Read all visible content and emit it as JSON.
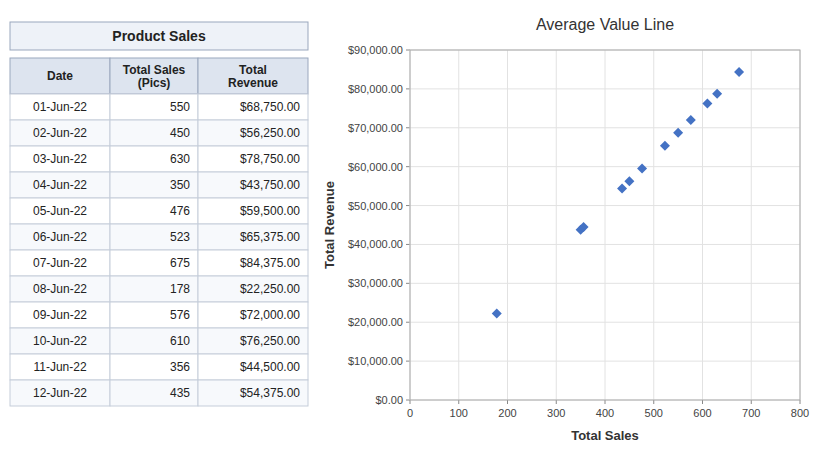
{
  "chart_data": [
    {
      "type": "table",
      "title": "Product Sales",
      "xlabel": "Date",
      "categories": [
        "01-Jun-22",
        "02-Jun-22",
        "03-Jun-22",
        "04-Jun-22",
        "05-Jun-22",
        "06-Jun-22",
        "07-Jun-22",
        "08-Jun-22",
        "09-Jun-22",
        "10-Jun-22",
        "11-Jun-22",
        "12-Jun-22"
      ],
      "series": [
        {
          "name": "Total Sales\n(Pics)",
          "values": [
            550,
            450,
            630,
            350,
            476,
            523,
            675,
            178,
            576,
            610,
            356,
            435
          ]
        },
        {
          "name": "Total\nRevenue",
          "values": [
            68750,
            56250,
            78750,
            43750,
            59500,
            65375,
            84375,
            22250,
            72000,
            76250,
            44500,
            54375
          ],
          "value_labels": [
            "$68,750.00",
            "$56,250.00",
            "$78,750.00",
            "$43,750.00",
            "$59,500.00",
            "$65,375.00",
            "$84,375.00",
            "$22,250.00",
            "$72,000.00",
            "$76,250.00",
            "$44,500.00",
            "$54,375.00"
          ]
        }
      ]
    },
    {
      "type": "scatter",
      "title": "Average Value Line",
      "xlabel": "Total Sales",
      "ylabel": "Total Revenue",
      "x": [
        550,
        450,
        630,
        350,
        476,
        523,
        675,
        178,
        576,
        610,
        356,
        435
      ],
      "values": [
        68750,
        56250,
        78750,
        43750,
        59500,
        65375,
        84375,
        22250,
        72000,
        76250,
        44500,
        54375
      ],
      "color": "#4472C4",
      "marker": "diamond",
      "grid": true,
      "xlim": [
        0,
        800
      ],
      "ylim": [
        0,
        90000
      ],
      "xticks": [
        0,
        100,
        200,
        300,
        400,
        500,
        600,
        700,
        800
      ],
      "yticks": [
        {
          "value": 0,
          "label": "$0.00"
        },
        {
          "value": 10000,
          "label": "$10,000.00"
        },
        {
          "value": 20000,
          "label": "$20,000.00"
        },
        {
          "value": 30000,
          "label": "$30,000.00"
        },
        {
          "value": 40000,
          "label": "$40,000.00"
        },
        {
          "value": 50000,
          "label": "$50,000.00"
        },
        {
          "value": 60000,
          "label": "$60,000.00"
        },
        {
          "value": 70000,
          "label": "$70,000.00"
        },
        {
          "value": 80000,
          "label": "$80,000.00"
        },
        {
          "value": 90000,
          "label": "$90,000.00"
        }
      ]
    }
  ]
}
